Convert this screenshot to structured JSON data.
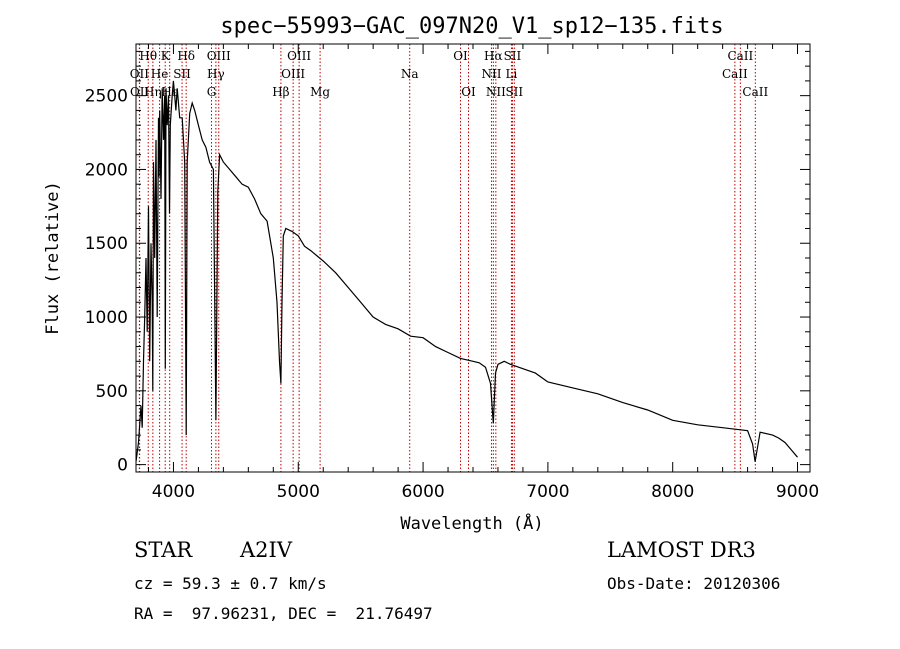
{
  "chart_data": {
    "type": "line",
    "title": "spec−55993−GAC_097N20_V1_sp12−135.fits",
    "xlabel": "Wavelength (Å)",
    "ylabel": "Flux (relative)",
    "xlim": [
      3700,
      9100
    ],
    "ylim": [
      -50,
      2850
    ],
    "xticks": [
      4000,
      5000,
      6000,
      7000,
      8000,
      9000
    ],
    "yticks": [
      0,
      500,
      1000,
      1500,
      2000,
      2500
    ],
    "series": [
      {
        "name": "flux",
        "x": [
          3700,
          3720,
          3740,
          3750,
          3760,
          3770,
          3780,
          3790,
          3800,
          3810,
          3820,
          3830,
          3835,
          3840,
          3850,
          3860,
          3870,
          3880,
          3885,
          3890,
          3900,
          3910,
          3920,
          3930,
          3935,
          3940,
          3950,
          3960,
          3968,
          3975,
          3990,
          4000,
          4010,
          4020,
          4030,
          4050,
          4070,
          4090,
          4102,
          4110,
          4130,
          4150,
          4170,
          4200,
          4230,
          4260,
          4290,
          4320,
          4340,
          4355,
          4370,
          4400,
          4450,
          4500,
          4550,
          4600,
          4650,
          4700,
          4750,
          4800,
          4830,
          4850,
          4861,
          4870,
          4880,
          4900,
          4950,
          5000,
          5050,
          5100,
          5200,
          5300,
          5400,
          5500,
          5600,
          5700,
          5800,
          5900,
          6000,
          6100,
          6200,
          6300,
          6400,
          6450,
          6500,
          6540,
          6563,
          6580,
          6600,
          6650,
          6700,
          6800,
          6900,
          7000,
          7200,
          7400,
          7600,
          7800,
          8000,
          8200,
          8400,
          8500,
          8600,
          8640,
          8660,
          8700,
          8800,
          8850,
          8900,
          8950,
          9000
        ],
        "values": [
          20,
          150,
          400,
          250,
          700,
          1000,
          1400,
          900,
          1750,
          700,
          1500,
          1100,
          500,
          2050,
          1400,
          2200,
          1000,
          2350,
          1950,
          2400,
          1800,
          2550,
          2200,
          2500,
          650,
          2550,
          2300,
          2500,
          1700,
          2300,
          2500,
          2600,
          2500,
          2400,
          2550,
          2350,
          2350,
          2050,
          200,
          2050,
          2380,
          2450,
          2400,
          2300,
          2200,
          2150,
          2050,
          2000,
          300,
          1850,
          2100,
          2050,
          2000,
          1950,
          1900,
          1880,
          1800,
          1700,
          1650,
          1400,
          1100,
          700,
          550,
          1100,
          1550,
          1600,
          1580,
          1550,
          1480,
          1450,
          1380,
          1300,
          1200,
          1100,
          1000,
          950,
          920,
          870,
          860,
          800,
          760,
          720,
          700,
          690,
          660,
          550,
          280,
          620,
          680,
          700,
          680,
          650,
          620,
          560,
          520,
          480,
          420,
          370,
          300,
          270,
          250,
          240,
          230,
          140,
          20,
          220,
          200,
          180,
          150,
          100,
          50
        ]
      }
    ],
    "spectral_lines": [
      {
        "label": "Hθ",
        "x": 3798,
        "row": 1
      },
      {
        "label": "OII",
        "x": 3727,
        "row": 2
      },
      {
        "label": "OII",
        "x": 3729,
        "row": 3
      },
      {
        "label": "K",
        "x": 3934,
        "row": 1
      },
      {
        "label": "He",
        "x": 3889,
        "row": 2
      },
      {
        "label": "Hη",
        "x": 3835,
        "row": 3
      },
      {
        "label": "Hδ",
        "x": 4102,
        "row": 1
      },
      {
        "label": "SII",
        "x": 4069,
        "row": 2
      },
      {
        "label": "Hε",
        "x": 3970,
        "row": 3
      },
      {
        "label": "OIII",
        "x": 4363,
        "row": 1
      },
      {
        "label": "Hγ",
        "x": 4340,
        "row": 2
      },
      {
        "label": "G",
        "x": 4305,
        "row": 3
      },
      {
        "label": "OIII",
        "x": 5007,
        "row": 1
      },
      {
        "label": "OIII",
        "x": 4959,
        "row": 2
      },
      {
        "label": "Hβ",
        "x": 4861,
        "row": 3
      },
      {
        "label": "Mg",
        "x": 5175,
        "row": 3
      },
      {
        "label": "Na",
        "x": 5893,
        "row": 2
      },
      {
        "label": "OI",
        "x": 6300,
        "row": 1
      },
      {
        "label": "OI",
        "x": 6364,
        "row": 3
      },
      {
        "label": "Hα",
        "x": 6563,
        "row": 1
      },
      {
        "label": "NII",
        "x": 6548,
        "row": 2
      },
      {
        "label": "NII",
        "x": 6583,
        "row": 3
      },
      {
        "label": "SII",
        "x": 6716,
        "row": 1
      },
      {
        "label": "Li",
        "x": 6708,
        "row": 2
      },
      {
        "label": "SII",
        "x": 6731,
        "row": 3
      },
      {
        "label": "CaII",
        "x": 8542,
        "row": 1
      },
      {
        "label": "CaII",
        "x": 8498,
        "row": 2
      },
      {
        "label": "CaII",
        "x": 8662,
        "row": 3
      }
    ]
  },
  "info": {
    "object_class": "STAR",
    "subclass": "A2IV",
    "survey": "LAMOST DR3",
    "cz": "cz = 59.3 ± 0.7 km/s",
    "obs_date": "Obs-Date: 20120306",
    "coords": "RA =  97.96231, DEC =  21.76497"
  }
}
